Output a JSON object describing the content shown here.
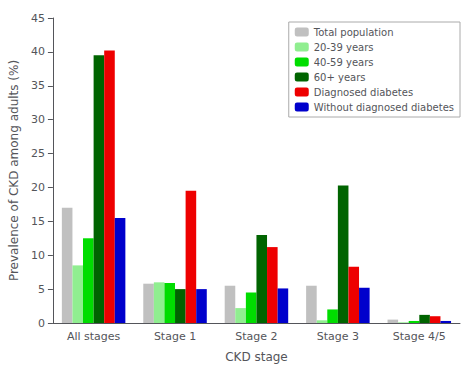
{
  "chart_data": {
    "type": "bar",
    "categories": [
      "All stages",
      "Stage 1",
      "Stage 2",
      "Stage 3",
      "Stage 4/5"
    ],
    "series": [
      {
        "name": "Total population",
        "color": "#c0c0c0",
        "values": [
          17.0,
          5.8,
          5.5,
          5.5,
          0.5
        ]
      },
      {
        "name": "20-39 years",
        "color": "#90ee90",
        "values": [
          8.5,
          6.0,
          2.2,
          0.4,
          0.1
        ]
      },
      {
        "name": "40-59 years",
        "color": "#00dd00",
        "values": [
          12.5,
          5.9,
          4.5,
          2.0,
          0.3
        ]
      },
      {
        "name": "60+ years",
        "color": "#006400",
        "values": [
          39.5,
          5.0,
          13.0,
          20.3,
          1.2
        ]
      },
      {
        "name": "Diagnosed diabetes",
        "color": "#ee0000",
        "values": [
          40.2,
          19.5,
          11.2,
          8.3,
          1.0
        ]
      },
      {
        "name": "Without diagnosed diabetes",
        "color": "#0000cc",
        "values": [
          15.5,
          5.0,
          5.1,
          5.2,
          0.3
        ]
      }
    ],
    "ylabel": "Prevalence of CKD among adults (%)",
    "xlabel": "CKD stage",
    "ylim": [
      0,
      45
    ],
    "yticks": [
      0,
      5,
      10,
      15,
      20,
      25,
      30,
      35,
      40,
      45
    ],
    "grid": false,
    "legend": "upper right"
  }
}
